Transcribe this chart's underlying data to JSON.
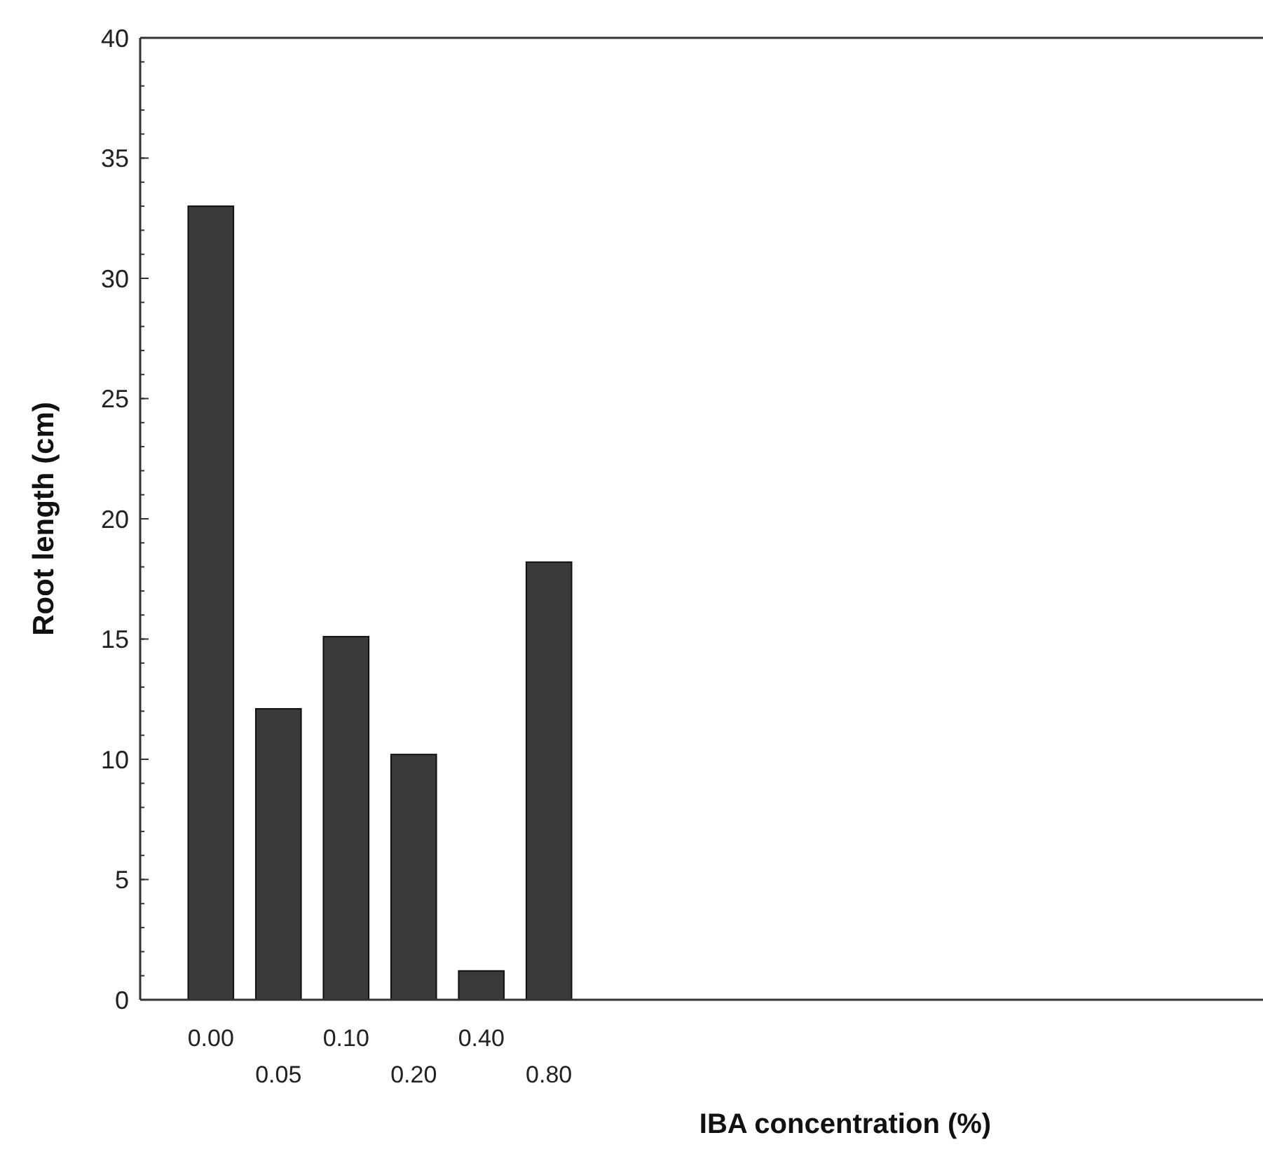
{
  "chart_data": {
    "type": "bar",
    "xlabel": "IBA concentration (%)",
    "ylabel": "Root length (cm)",
    "categories": [
      "0.00",
      "0.05",
      "0.10",
      "0.20",
      "0.40",
      "0.80"
    ],
    "values": [
      33,
      12.1,
      15.1,
      10.2,
      1.2,
      18.2
    ],
    "color": "#3a3a3a",
    "ylim": [
      0,
      40
    ],
    "yticks": [
      0,
      5,
      10,
      15,
      20,
      25,
      30,
      35,
      40
    ],
    "grid": false
  }
}
